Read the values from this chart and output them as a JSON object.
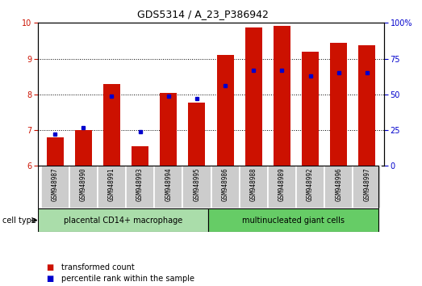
{
  "title": "GDS5314 / A_23_P386942",
  "samples": [
    "GSM948987",
    "GSM948990",
    "GSM948991",
    "GSM948993",
    "GSM948994",
    "GSM948995",
    "GSM948986",
    "GSM948988",
    "GSM948989",
    "GSM948992",
    "GSM948996",
    "GSM948997"
  ],
  "transformed_count": [
    6.8,
    7.0,
    8.3,
    6.55,
    8.05,
    7.78,
    9.1,
    9.88,
    9.92,
    9.2,
    9.45,
    9.38
  ],
  "percentile_rank": [
    22,
    27,
    49,
    24,
    49,
    47,
    56,
    67,
    67,
    63,
    65,
    65
  ],
  "group1_label": "placental CD14+ macrophage",
  "group2_label": "multinucleated giant cells",
  "group1_count": 6,
  "group2_count": 6,
  "ylim": [
    6,
    10
  ],
  "yticks": [
    6,
    7,
    8,
    9,
    10
  ],
  "y2ticks": [
    0,
    25,
    50,
    75,
    100
  ],
  "bar_color": "#cc1100",
  "dot_color": "#0000cc",
  "group1_bg": "#aaddaa",
  "group2_bg": "#66cc66",
  "sample_bg": "#cccccc",
  "legend_tc": "transformed count",
  "legend_pr": "percentile rank within the sample",
  "cell_type_label": "cell type"
}
